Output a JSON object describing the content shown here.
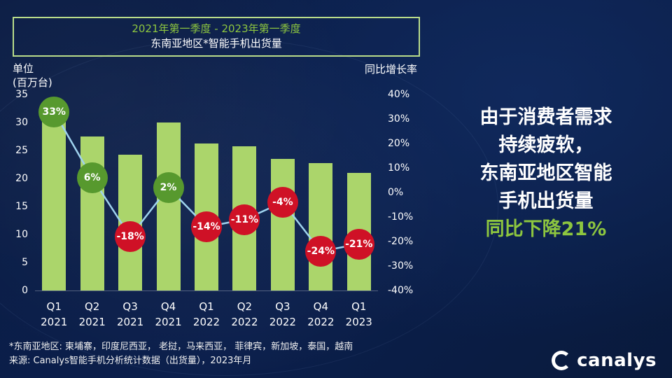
{
  "title": {
    "line1": "2021年第一季度 - 2023年第一季度",
    "line2": "东南亚地区*智能手机出货量"
  },
  "axis": {
    "left_title_line1": "单位",
    "left_title_line2": "(百万台)",
    "right_title": "同比增长率"
  },
  "chart_data": {
    "type": "bar+line",
    "categories": [
      {
        "quarter": "Q1",
        "year": "2021"
      },
      {
        "quarter": "Q2",
        "year": "2021"
      },
      {
        "quarter": "Q3",
        "year": "2021"
      },
      {
        "quarter": "Q4",
        "year": "2021"
      },
      {
        "quarter": "Q1",
        "year": "2022"
      },
      {
        "quarter": "Q2",
        "year": "2022"
      },
      {
        "quarter": "Q3",
        "year": "2022"
      },
      {
        "quarter": "Q4",
        "year": "2022"
      },
      {
        "quarter": "Q1",
        "year": "2023"
      }
    ],
    "bars": {
      "values": [
        32.5,
        27.5,
        24.2,
        30.0,
        26.3,
        25.8,
        23.5,
        22.8,
        21.0
      ]
    },
    "line": {
      "values": [
        33,
        6,
        -18,
        2,
        -14,
        -11,
        -4,
        -24,
        -21
      ],
      "labels": [
        "33%",
        "6%",
        "-18%",
        "2%",
        "-14%",
        "-11%",
        "-4%",
        "-24%",
        "-21%"
      ]
    },
    "ylim_left": [
      0,
      35
    ],
    "left_ticks": [
      35,
      30,
      25,
      20,
      15,
      10,
      5,
      0
    ],
    "ylim_right": [
      -40,
      40
    ],
    "right_ticks": [
      "40%",
      "30%",
      "20%",
      "10%",
      "0%",
      "-10%",
      "-20%",
      "-30%",
      "-40%"
    ],
    "grid": false,
    "legend": false
  },
  "annotation": {
    "lines": [
      "由于消费者需求",
      "持续疲软，",
      "东南亚地区智能",
      "手机出货量"
    ],
    "highlight": "同比下降21%"
  },
  "footnote": {
    "line1": "*东南亚地区: 柬埔寨，印度尼西亚， 老挝，马来西亚， 菲律宾，新加坡，泰国，越南",
    "line2": "来源: Canalys智能手机分析统计数据（出货量），2023年月"
  },
  "logo": {
    "text": "canalys"
  },
  "colors": {
    "bar": "#abd56b",
    "positive_circle": "#57992e",
    "negative_circle": "#cf1126",
    "line": "#9fd3ee",
    "accent_green": "#8dc63f",
    "title_border": "#b9dc8a",
    "background": "#0a1b41",
    "text": "#ffffff"
  }
}
